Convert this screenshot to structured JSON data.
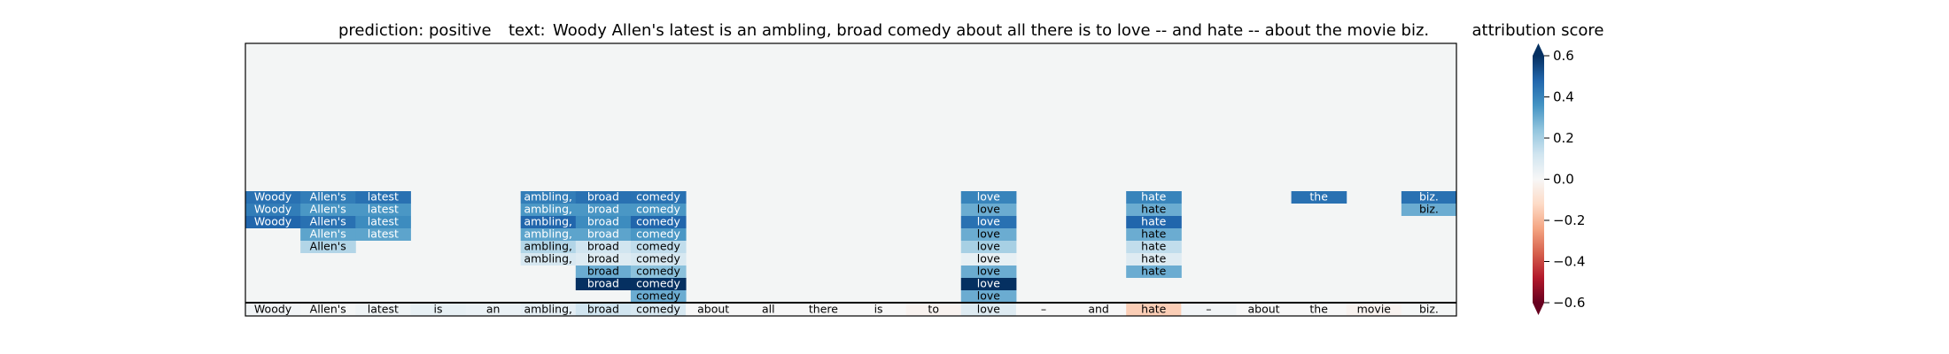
{
  "title": {
    "prediction_label": "prediction:",
    "prediction_value": "positive",
    "text_label": "text:",
    "text_value": "Woody Allen's latest is an ambling, broad comedy about all there is to love -- and hate -- about the movie biz."
  },
  "colorbar": {
    "title": "attribution score",
    "ticks": [
      "0.6",
      "0.4",
      "0.2",
      "0.0",
      "−0.2",
      "−0.4",
      "−0.6"
    ],
    "range": [
      -0.6,
      0.6
    ]
  },
  "chart_data": {
    "type": "heatmap",
    "colormap": "RdBu",
    "tokens": [
      "Woody",
      "Allen's",
      "latest",
      "is",
      "an",
      "ambling,",
      "broad",
      "comedy",
      "about",
      "all",
      "there",
      "is",
      "to",
      "love",
      "--",
      "and",
      "hate",
      "--",
      "about",
      "the",
      "movie",
      "biz."
    ],
    "bottom_labels": [
      "Woody",
      "Allen's",
      "latest",
      "is",
      "an",
      "ambling,",
      "broad",
      "comedy",
      "about",
      "all",
      "there",
      "is",
      "to",
      "love",
      "–",
      "and",
      "hate",
      "–",
      "about",
      "the",
      "movie",
      "biz."
    ],
    "token_scores": [
      0.02,
      0.01,
      0.03,
      0.05,
      0.04,
      0.06,
      0.12,
      0.1,
      0.0,
      0.0,
      0.0,
      0.0,
      -0.02,
      0.08,
      0.0,
      0.0,
      -0.15,
      0.02,
      0.0,
      0.0,
      -0.02,
      0.01
    ],
    "columns": [
      [
        0.45,
        0.42,
        0.48
      ],
      [
        0.42,
        0.35,
        0.45,
        0.32,
        0.18
      ],
      [
        0.45,
        0.35,
        0.38,
        0.32
      ],
      [],
      [],
      [
        0.42,
        0.35,
        0.48,
        0.32,
        0.18,
        0.1
      ],
      [
        0.45,
        0.35,
        0.38,
        0.32,
        0.12,
        0.08,
        0.3,
        0.62
      ],
      [
        0.45,
        0.35,
        0.48,
        0.35,
        0.15,
        0.1,
        0.25,
        0.6,
        0.3
      ],
      [],
      [],
      [],
      [],
      [],
      [
        0.4,
        0.3,
        0.45,
        0.3,
        0.2,
        0.05,
        0.3,
        0.62,
        0.3
      ],
      [],
      [],
      [
        0.4,
        0.3,
        0.48,
        0.3,
        0.15,
        0.08,
        0.3
      ],
      [],
      [],
      [
        0.45
      ],
      [],
      [
        0.45,
        0.3
      ]
    ]
  }
}
